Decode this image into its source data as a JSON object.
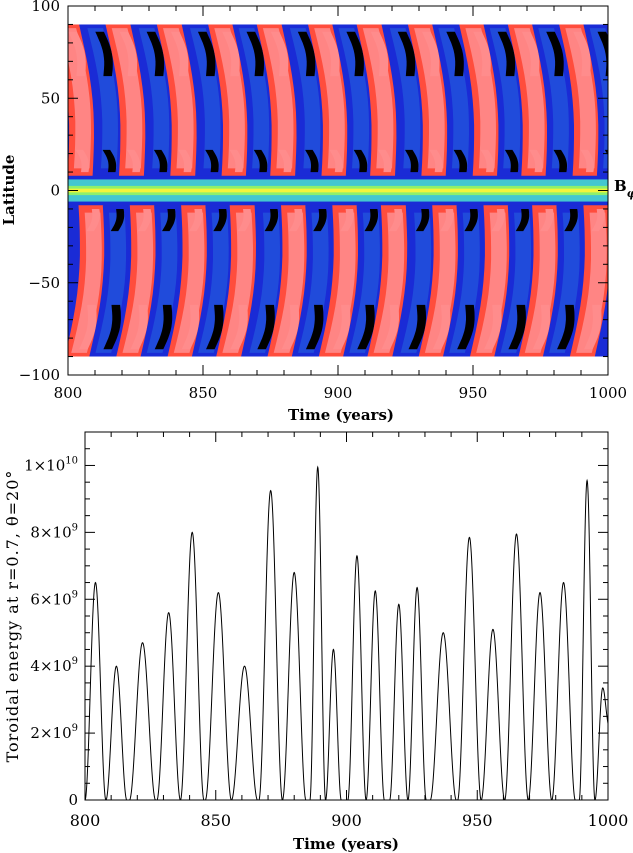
{
  "chart_data": [
    {
      "type": "heatmap",
      "title": "",
      "xlabel": "Time (years)",
      "ylabel": "Latitude",
      "side_label": "B",
      "side_label_sub": "φ",
      "xlim": [
        800,
        1000
      ],
      "ylim": [
        -100,
        100
      ],
      "data_lat_range": [
        -90,
        90
      ],
      "x_ticks": [
        800,
        850,
        900,
        950,
        1000
      ],
      "x_tick_labels": [
        "800",
        "850",
        "900",
        "950",
        "1000"
      ],
      "y_ticks": [
        100,
        50,
        0,
        -50,
        -100
      ],
      "y_tick_labels": [
        "100",
        "50",
        "0",
        "−50",
        "−100"
      ],
      "colors": {
        "strong_negative": "#000000",
        "negative": "#1a2bd6",
        "weak_negative": "#2f86e6",
        "near_zero": "#49d8ce",
        "zero": "#f4f43a",
        "weak_positive": "#ff7a2a",
        "positive": "#ff4d3d",
        "strong_positive": "#ff8c8c"
      },
      "band_times_north": [
        802,
        812,
        821,
        831,
        840,
        850,
        859,
        868,
        877,
        887,
        896,
        905,
        914,
        924,
        933,
        942,
        952,
        961,
        970,
        979,
        989,
        998
      ],
      "band_times_south": [
        806,
        815,
        825,
        834,
        844,
        853,
        862,
        872,
        881,
        890,
        900,
        909,
        918,
        928,
        937,
        946,
        956,
        965,
        974,
        983,
        993
      ]
    },
    {
      "type": "line",
      "title": "",
      "xlabel": "Time (years)",
      "ylabel": "Toroidal energy at r=0.7, θ=20°",
      "xlim": [
        800,
        1000
      ],
      "ylim": [
        0,
        11000000000.0
      ],
      "x_ticks": [
        800,
        850,
        900,
        950,
        1000
      ],
      "x_tick_labels": [
        "800",
        "850",
        "900",
        "950",
        "1000"
      ],
      "y_ticks": [
        0,
        2000000000.0,
        4000000000.0,
        6000000000.0,
        8000000000.0,
        10000000000.0
      ],
      "y_tick_labels": [
        {
          "mant": "0",
          "exp": ""
        },
        {
          "mant": "2×10",
          "exp": "9"
        },
        {
          "mant": "4×10",
          "exp": "9"
        },
        {
          "mant": "6×10",
          "exp": "9"
        },
        {
          "mant": "8×10",
          "exp": "9"
        },
        {
          "mant": "1×10",
          "exp": "10"
        }
      ],
      "peaks": [
        {
          "t": 804,
          "e": 6500000000.0
        },
        {
          "t": 812,
          "e": 4000000000.0
        },
        {
          "t": 822,
          "e": 4700000000.0
        },
        {
          "t": 832,
          "e": 5600000000.0
        },
        {
          "t": 841,
          "e": 8000000000.0
        },
        {
          "t": 851,
          "e": 6200000000.0
        },
        {
          "t": 861,
          "e": 4000000000.0
        },
        {
          "t": 871,
          "e": 9250000000.0
        },
        {
          "t": 880,
          "e": 6800000000.0
        },
        {
          "t": 889,
          "e": 9950000000.0
        },
        {
          "t": 895,
          "e": 4500000000.0
        },
        {
          "t": 904,
          "e": 7300000000.0
        },
        {
          "t": 911,
          "e": 6250000000.0
        },
        {
          "t": 920,
          "e": 5850000000.0
        },
        {
          "t": 927,
          "e": 6350000000.0
        },
        {
          "t": 937,
          "e": 5000000000.0
        },
        {
          "t": 947,
          "e": 7850000000.0
        },
        {
          "t": 956,
          "e": 5100000000.0
        },
        {
          "t": 965,
          "e": 7950000000.0
        },
        {
          "t": 974,
          "e": 6200000000.0
        },
        {
          "t": 983,
          "e": 6500000000.0
        },
        {
          "t": 992,
          "e": 9550000000.0
        },
        {
          "t": 998,
          "e": 3350000000.0
        }
      ],
      "end_value": 2000000000.0
    }
  ]
}
